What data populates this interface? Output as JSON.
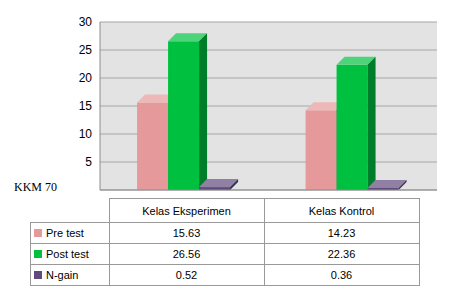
{
  "chart_data": {
    "type": "bar",
    "categories": [
      "Kelas Eksperimen",
      "Kelas Kontrol"
    ],
    "series": [
      {
        "name": "Pre test",
        "color": "#e6999a",
        "values": [
          15.63,
          14.23
        ]
      },
      {
        "name": "Post test",
        "color": "#00c040",
        "values": [
          26.56,
          22.36
        ]
      },
      {
        "name": "N-gain",
        "color": "#604a7b",
        "values": [
          0.52,
          0.36
        ]
      }
    ],
    "ylim": [
      0,
      30
    ],
    "yticks": [
      5,
      10,
      15,
      20,
      25,
      30
    ],
    "grid": true,
    "annotation": "KKM 70"
  }
}
